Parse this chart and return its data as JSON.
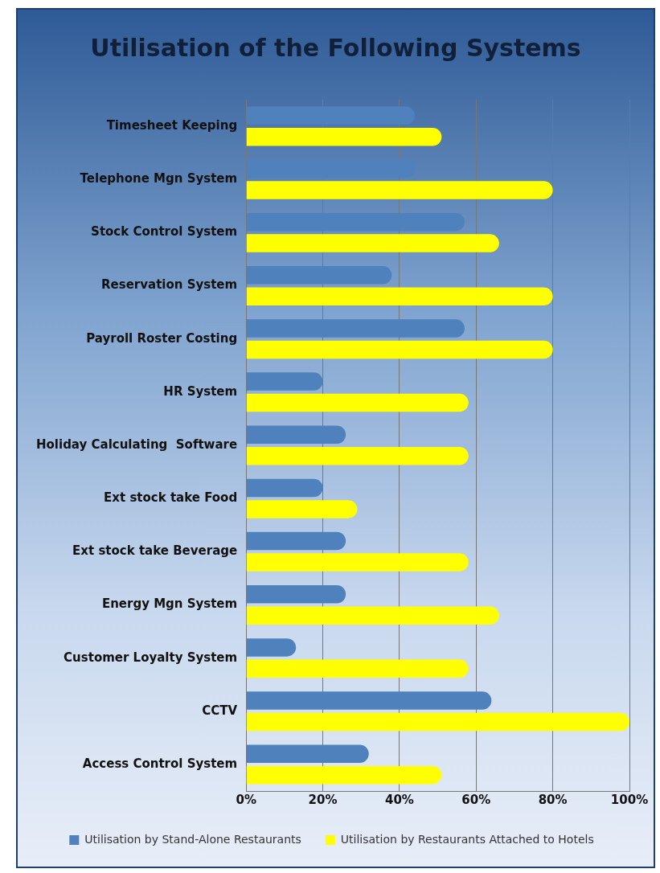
{
  "chart_data": {
    "type": "bar",
    "orientation": "horizontal",
    "title": "Utilisation of the Following Systems",
    "categories": [
      "Timesheet Keeping",
      "Telephone Mgn System",
      "Stock Control System",
      "Reservation System",
      "Payroll Roster Costing",
      "HR System",
      "Holiday Calculating  Software",
      "Ext stock take Food",
      "Ext stock take Beverage",
      "Energy Mgn System",
      "Customer Loyalty System",
      "CCTV",
      "Access Control System"
    ],
    "series": [
      {
        "name": "Utilisation by Stand-Alone Restaurants",
        "color": "#4f81bd",
        "values": [
          44,
          44,
          57,
          38,
          57,
          20,
          26,
          20,
          26,
          26,
          13,
          64,
          32
        ]
      },
      {
        "name": "Utilisation by Restaurants Attached to Hotels",
        "color": "#ffff00",
        "values": [
          51,
          80,
          66,
          80,
          80,
          58,
          58,
          29,
          58,
          66,
          58,
          100,
          51
        ]
      }
    ],
    "xlim": [
      0,
      100
    ],
    "xticks": [
      {
        "value": 0,
        "label": "0%"
      },
      {
        "value": 20,
        "label": "20%"
      },
      {
        "value": 40,
        "label": "40%"
      },
      {
        "value": 60,
        "label": "60%"
      },
      {
        "value": 80,
        "label": "80%"
      },
      {
        "value": 100,
        "label": "100%"
      }
    ],
    "grid": "x",
    "legend": "bottom"
  }
}
